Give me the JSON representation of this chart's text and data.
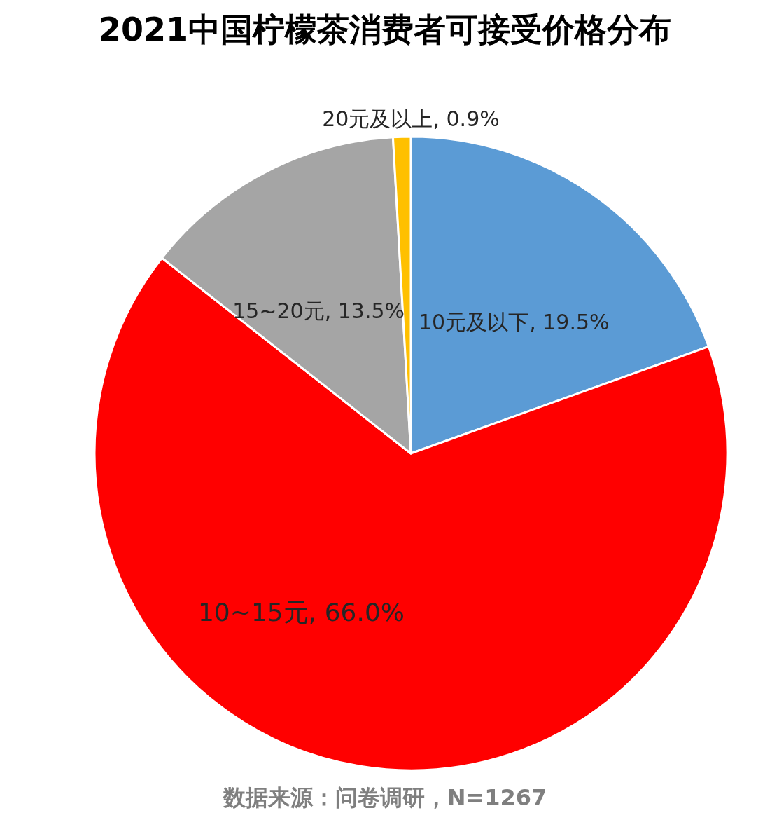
{
  "chart_data": {
    "type": "pie",
    "title": "2021中国柠檬茶消费者可接受价格分布",
    "categories": [
      "10元及以下",
      "10~15元",
      "15~20元",
      "20元及以上"
    ],
    "values": [
      19.5,
      66.0,
      13.5,
      0.9
    ],
    "colors": [
      "#5b9bd5",
      "#ff0000",
      "#a5a5a5",
      "#ffc000"
    ],
    "value_labels": [
      "19.5%",
      "66.0%",
      "13.5%",
      "0.9%"
    ],
    "legend": false,
    "annotations": [
      "数据来源：问卷调研，N=1267"
    ]
  }
}
